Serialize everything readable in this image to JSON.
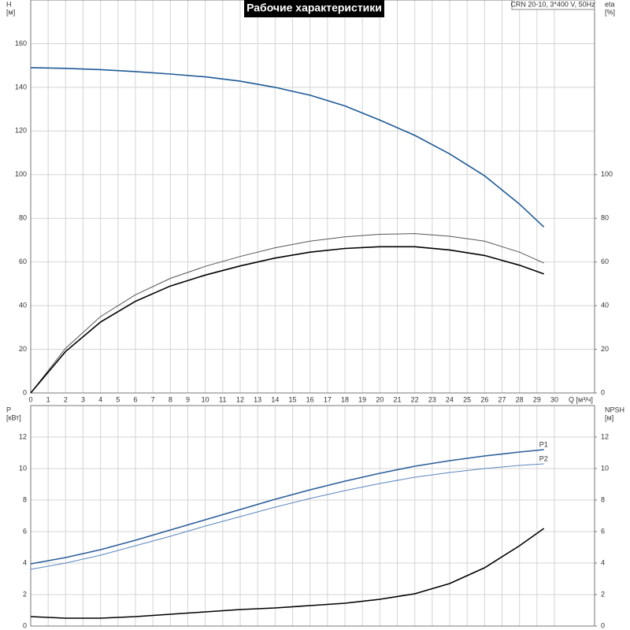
{
  "chart_data": [
    {
      "type": "line",
      "title": "Рабочие характеристики",
      "subtitle": "CRN 20-10, 3*400 V, 50Hz",
      "xlabel": "Q [м³/ч]",
      "ylabel": "H",
      "yunit": "[м]",
      "y2label": "eta",
      "y2unit": "[%]",
      "xlim": [
        0,
        32.3
      ],
      "xticks": [
        0,
        1,
        2,
        3,
        4,
        5,
        6,
        7,
        8,
        9,
        10,
        11,
        12,
        13,
        14,
        15,
        16,
        17,
        18,
        19,
        20,
        21,
        22,
        23,
        24,
        25,
        26,
        27,
        28,
        29,
        30
      ],
      "xtick_labels": true,
      "ylim": [
        0,
        180
      ],
      "yticks": [
        0,
        20,
        40,
        60,
        80,
        100,
        120,
        140,
        160
      ],
      "y2lim": [
        0,
        180
      ],
      "y2ticks": [
        0,
        20,
        40,
        60,
        80,
        100
      ],
      "grid": true,
      "x": [
        0,
        2,
        4,
        6,
        8,
        10,
        12,
        14,
        16,
        18,
        20,
        22,
        24,
        26,
        28,
        29.4
      ],
      "series": [
        {
          "color": "#1f5a96",
          "width": 1.6,
          "values": [
            149,
            148.7,
            148.1,
            147.2,
            146.1,
            144.8,
            142.8,
            140,
            136.4,
            131.5,
            125,
            118,
            109.5,
            99.5,
            86.5,
            76
          ]
        },
        {
          "color": "#555555",
          "width": 1,
          "axis": "y2",
          "values": [
            0,
            20.5,
            35,
            45,
            52.5,
            58,
            62.5,
            66.5,
            69.5,
            71.5,
            72.7,
            73,
            71.8,
            69.5,
            64.5,
            59.5
          ]
        },
        {
          "color": "#000000",
          "width": 1.6,
          "axis": "y2",
          "values": [
            0,
            19,
            32.5,
            42,
            49,
            54,
            58.2,
            61.8,
            64.5,
            66.2,
            67,
            67,
            65.5,
            63,
            58.5,
            54.5
          ]
        }
      ]
    },
    {
      "type": "line",
      "ylabel": "P",
      "yunit": "[кВт]",
      "y2label": "NPSH",
      "y2unit": "[м]",
      "xlim": [
        0,
        32.3
      ],
      "xticks": [
        0,
        1,
        2,
        3,
        4,
        5,
        6,
        7,
        8,
        9,
        10,
        11,
        12,
        13,
        14,
        15,
        16,
        17,
        18,
        19,
        20,
        21,
        22,
        23,
        24,
        25,
        26,
        27,
        28,
        29,
        30
      ],
      "xtick_labels": false,
      "ylim": [
        0,
        14
      ],
      "yticks": [
        0,
        2,
        4,
        6,
        8,
        10,
        12
      ],
      "y2lim": [
        0,
        14
      ],
      "y2ticks": [
        0,
        2,
        4,
        6,
        8,
        10,
        12
      ],
      "grid": true,
      "x": [
        0,
        2,
        4,
        6,
        8,
        10,
        12,
        14,
        16,
        18,
        20,
        22,
        24,
        26,
        28,
        29.4
      ],
      "series": [
        {
          "name": "P1",
          "color": "#2a5d9a",
          "width": 1.6,
          "values": [
            3.95,
            4.35,
            4.85,
            5.45,
            6.1,
            6.75,
            7.4,
            8.05,
            8.65,
            9.2,
            9.7,
            10.15,
            10.5,
            10.8,
            11.05,
            11.2
          ]
        },
        {
          "name": "P2",
          "color": "#5a86bd",
          "width": 1,
          "values": [
            3.6,
            4.0,
            4.5,
            5.1,
            5.7,
            6.35,
            6.95,
            7.55,
            8.1,
            8.6,
            9.05,
            9.45,
            9.75,
            10.0,
            10.2,
            10.3
          ]
        },
        {
          "color": "#000000",
          "width": 1.6,
          "axis": "y2",
          "values": [
            0.6,
            0.5,
            0.5,
            0.6,
            0.75,
            0.9,
            1.05,
            1.15,
            1.3,
            1.45,
            1.7,
            2.05,
            2.7,
            3.7,
            5.1,
            6.2
          ]
        }
      ]
    }
  ]
}
